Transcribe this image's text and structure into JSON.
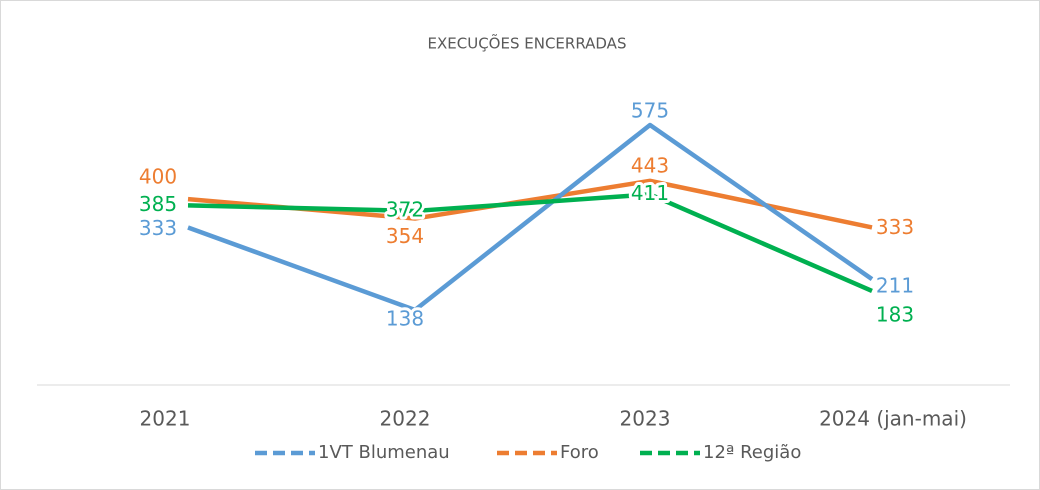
{
  "chart_data": {
    "type": "line",
    "title": "EXECUÇÕES ENCERRADAS",
    "categories": [
      "2021",
      "2022",
      "2023",
      "2024 (jan-mai)"
    ],
    "series": [
      {
        "name": "1VT Blumenau",
        "color": "#5b9bd5",
        "values": [
          333,
          138,
          575,
          211
        ]
      },
      {
        "name": "Foro",
        "color": "#ed7d31",
        "values": [
          400,
          354,
          443,
          333
        ]
      },
      {
        "name": "12ª Região",
        "color": "#00b050",
        "values": [
          385,
          372,
          411,
          183
        ]
      }
    ]
  }
}
